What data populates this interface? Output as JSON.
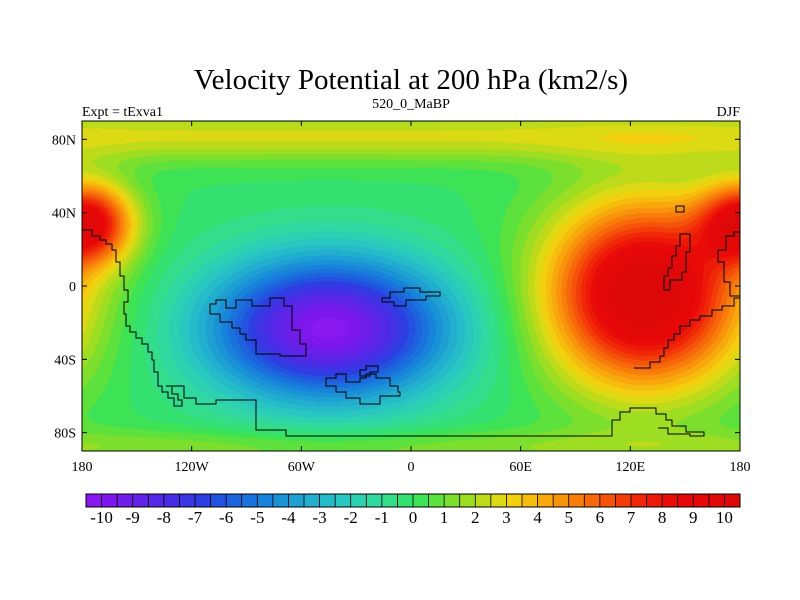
{
  "chart_data": {
    "type": "heatmap",
    "title": "Velocity Potential at 200 hPa (km2/s)",
    "left_label": "Expt = tExva1",
    "center_label": "520_0_MaBP",
    "right_label": "DJF",
    "x_range": [
      180,
      540
    ],
    "y_range": [
      -90,
      90
    ],
    "x_ticks": [
      {
        "value": 180,
        "label": "180"
      },
      {
        "value": 240,
        "label": "120W"
      },
      {
        "value": 300,
        "label": "60W"
      },
      {
        "value": 360,
        "label": "0"
      },
      {
        "value": 420,
        "label": "60E"
      },
      {
        "value": 480,
        "label": "120E"
      },
      {
        "value": 540,
        "label": "180"
      }
    ],
    "y_ticks": [
      {
        "value": 80,
        "label": "80N"
      },
      {
        "value": 40,
        "label": "40N"
      },
      {
        "value": 0,
        "label": "0"
      },
      {
        "value": -40,
        "label": "40S"
      },
      {
        "value": -80,
        "label": "80S"
      }
    ],
    "colorbar": {
      "min": -10.5,
      "max": 10.5,
      "step": 0.5,
      "labels": [
        "-10",
        "-9",
        "-8",
        "-7",
        "-6",
        "-5",
        "-4",
        "-3",
        "-2",
        "-1",
        "0",
        "1",
        "2",
        "3",
        "4",
        "5",
        "6",
        "7",
        "8",
        "9",
        "10"
      ],
      "colors": [
        "#8a19f0",
        "#7d17ec",
        "#6f1ee9",
        "#6223e8",
        "#5428e6",
        "#472de5",
        "#3a36e3",
        "#2d3ee2",
        "#2452e0",
        "#1e63de",
        "#1a73dc",
        "#1883da",
        "#1a92d6",
        "#1ea0d2",
        "#22aece",
        "#26bbc9",
        "#2ac6c0",
        "#2ed0b2",
        "#31d8a0",
        "#33dd8a",
        "#34e070",
        "#3ee255",
        "#5ce13d",
        "#7ddf2d",
        "#9ddd22",
        "#bddb1a",
        "#dcd915",
        "#f2d010",
        "#f6bd0e",
        "#f8a80d",
        "#f8930c",
        "#f87d0b",
        "#f7680a",
        "#f55309",
        "#f33d09",
        "#f02808",
        "#ec1808",
        "#e80b08",
        "#e60808",
        "#e40808",
        "#e00808",
        "#dd0808"
      ]
    },
    "field_centers": [
      {
        "name": "south-pacific-minimum",
        "lon": 315,
        "lat": -25,
        "value": -10
      },
      {
        "name": "west-pacific-maximum",
        "lon": 488,
        "lat": -5,
        "value": 10
      },
      {
        "name": "dateline-nw-maximum",
        "lon": 183,
        "lat": 35,
        "value": 9
      }
    ],
    "contour_interval": 0.5,
    "colors": {
      "coastline": "#000000",
      "frame": "#000000"
    }
  }
}
